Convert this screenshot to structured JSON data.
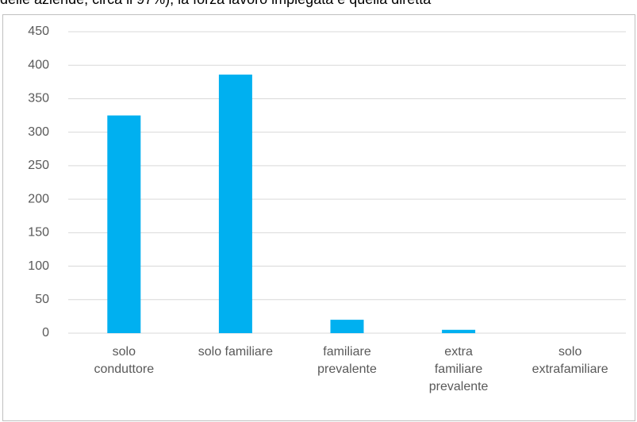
{
  "caption": "delle aziende, circa il 97%), la forza lavoro impiegata è quella diretta",
  "chart_data": {
    "type": "bar",
    "categories": [
      "solo\nconduttore",
      "solo familiare",
      "familiare\nprevalente",
      "extra\nfamiliare\nprevalente",
      "solo\nextrafamiliare"
    ],
    "values": [
      325,
      386,
      20,
      5,
      0
    ],
    "color": "#00b0f0",
    "ylim": [
      0,
      450
    ],
    "yticks": [
      0,
      50,
      100,
      150,
      200,
      250,
      300,
      350,
      400,
      450
    ],
    "grid": true
  }
}
